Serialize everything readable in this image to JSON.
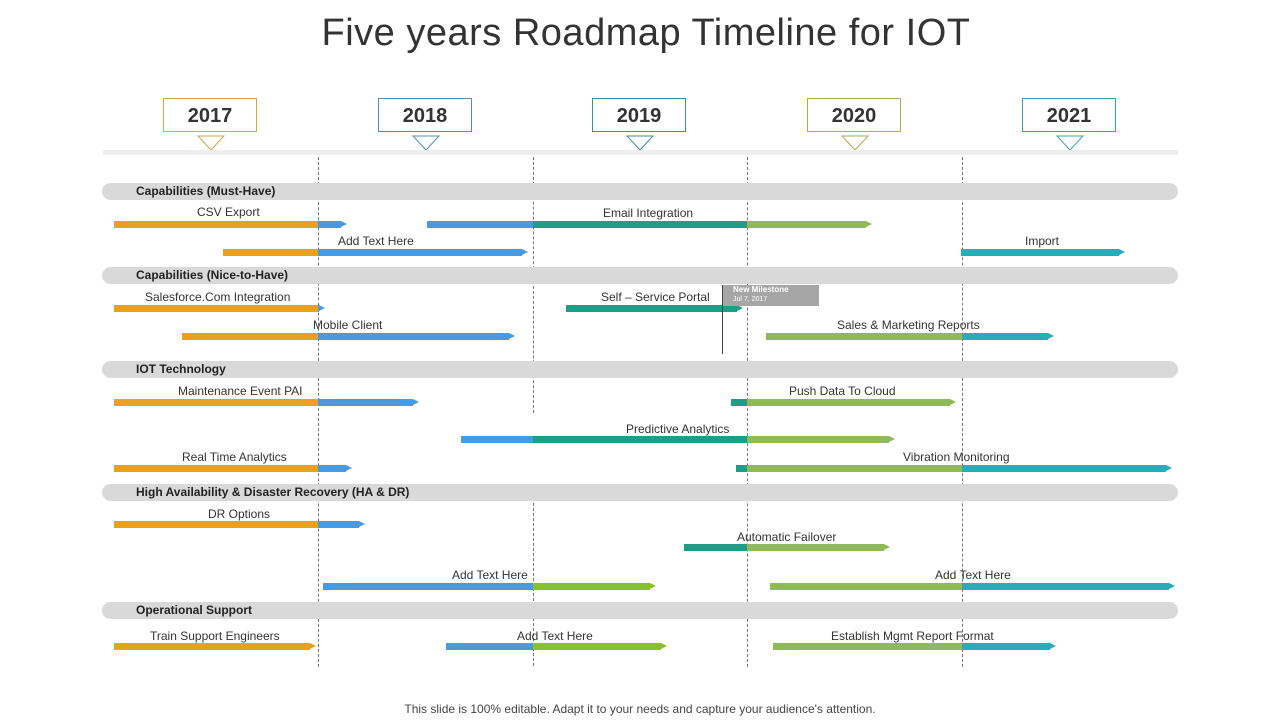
{
  "title": "Five years Roadmap Timeline for IOT",
  "years": [
    {
      "label": "2017",
      "color": "#d9a441"
    },
    {
      "label": "2018",
      "color": "#4a90b8"
    },
    {
      "label": "2019",
      "color": "#3a8ea0"
    },
    {
      "label": "2020",
      "color": "#b8a74a"
    },
    {
      "label": "2021",
      "color": "#3aa0b0"
    }
  ],
  "colors": {
    "orange": "#e8a020",
    "blue": "#4a9ae0",
    "teal": "#1e9e86",
    "green": "#8fba5a",
    "cyan": "#2aabb8",
    "lime": "#88c030"
  },
  "categories": [
    {
      "key": "must",
      "label": "Capabilities (Must-Have)"
    },
    {
      "key": "nice",
      "label": "Capabilities (Nice-to-Have)"
    },
    {
      "key": "iot",
      "label": "IOT Technology"
    },
    {
      "key": "ha",
      "label": "High Availability & Disaster  Recovery (HA & DR)"
    },
    {
      "key": "ops",
      "label": "Operational Support"
    }
  ],
  "tasks": [
    {
      "label": "CSV Export",
      "segments": [
        "orange",
        "blue"
      ]
    },
    {
      "label": "Email Integration",
      "segments": [
        "blue",
        "teal",
        "green"
      ]
    },
    {
      "label": "Add Text Here",
      "segments": [
        "orange",
        "blue"
      ]
    },
    {
      "label": "Import",
      "segments": [
        "cyan"
      ]
    },
    {
      "label": "Salesforce.Com Integration",
      "segments": [
        "orange",
        "blue"
      ]
    },
    {
      "label": "Self – Service Portal",
      "segments": [
        "teal"
      ]
    },
    {
      "label": "Mobile Client",
      "segments": [
        "orange",
        "blue"
      ]
    },
    {
      "label": "Sales & Marketing Reports",
      "segments": [
        "green",
        "cyan"
      ]
    },
    {
      "label": "Maintenance Event PAI",
      "segments": [
        "orange",
        "blue"
      ]
    },
    {
      "label": "Push Data To Cloud",
      "segments": [
        "teal",
        "green"
      ]
    },
    {
      "label": "Predictive Analytics",
      "segments": [
        "blue",
        "teal",
        "green"
      ]
    },
    {
      "label": "Real Time Analytics",
      "segments": [
        "orange",
        "blue"
      ]
    },
    {
      "label": "Vibration Monitoring",
      "segments": [
        "teal",
        "green",
        "cyan"
      ]
    },
    {
      "label": "DR Options",
      "segments": [
        "orange",
        "blue"
      ]
    },
    {
      "label": "Automatic Failover",
      "segments": [
        "teal",
        "green"
      ]
    },
    {
      "label": "Add Text Here",
      "segments": [
        "blue",
        "lime"
      ]
    },
    {
      "label": "Add Text Here",
      "segments": [
        "green",
        "cyan"
      ]
    },
    {
      "label": "Train Support Engineers",
      "segments": [
        "orange"
      ]
    },
    {
      "label": "Add Text Here",
      "segments": [
        "blue",
        "lime"
      ]
    },
    {
      "label": "Establish Mgmt Report Format",
      "segments": [
        "green",
        "cyan"
      ]
    }
  ],
  "milestone": {
    "title": "New Milestone",
    "date": "Jul 7, 2017",
    "color": "#a6a6a6"
  },
  "footer": "This slide is 100% editable. Adapt it to your needs and capture your audience's attention."
}
